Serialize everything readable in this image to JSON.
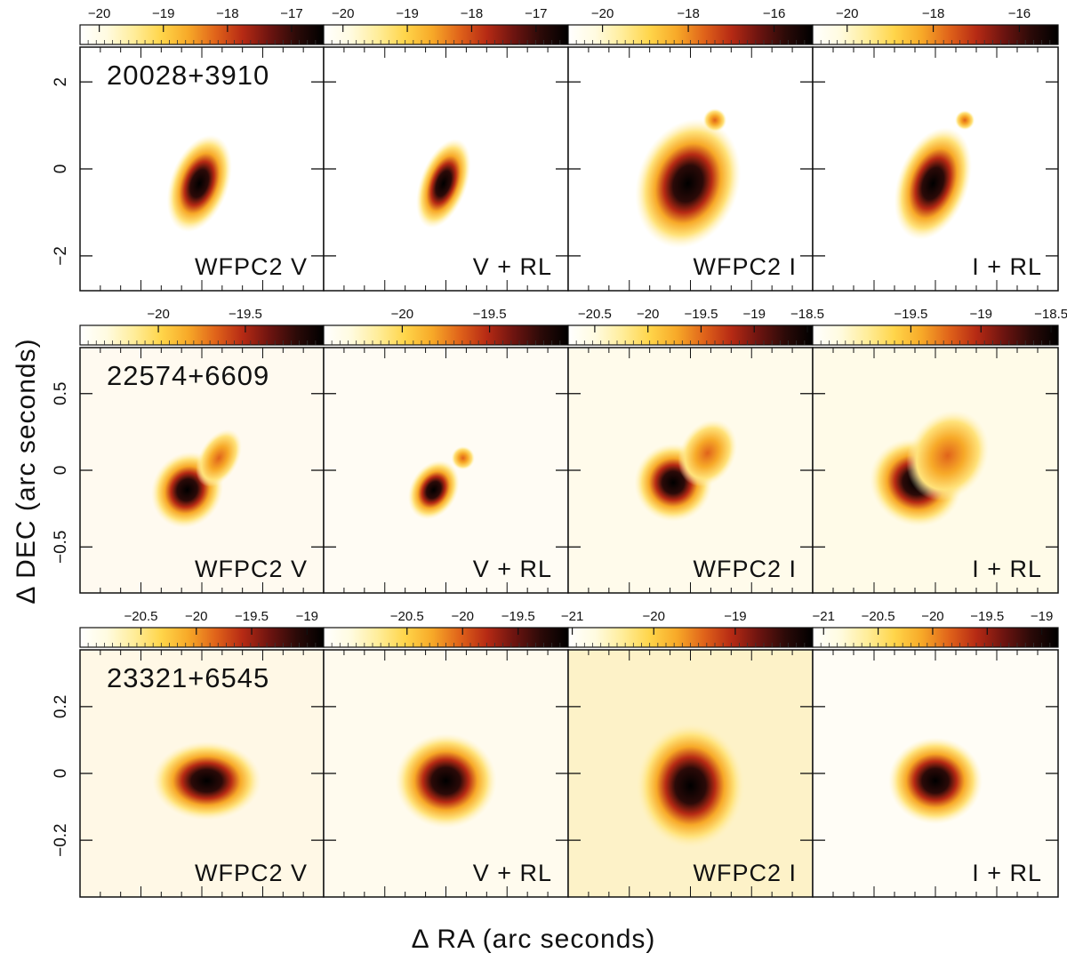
{
  "figure": {
    "x_axis_title": "Δ RA (arc seconds)",
    "y_axis_title": "Δ DEC (arc seconds)",
    "colormap": [
      "#ffffff",
      "#fffbe0",
      "#ffed9a",
      "#ffd54a",
      "#f7a928",
      "#e0631a",
      "#b62a14",
      "#6d1410",
      "#2b0a08",
      "#000000"
    ]
  },
  "rows": [
    {
      "object_label": "20028+3910",
      "y_ticks": [
        {
          "value": 2,
          "label": "2"
        },
        {
          "value": 0,
          "label": "0"
        },
        {
          "value": -2,
          "label": "−2"
        }
      ],
      "y_range": [
        -2.8,
        2.8
      ],
      "panels": [
        {
          "label": "WFPC2 V",
          "cbar_ticks": [
            {
              "value": -20,
              "label": "−20"
            },
            {
              "value": -19,
              "label": "−19"
            },
            {
              "value": -18,
              "label": "−18"
            },
            {
              "value": -17,
              "label": "−17"
            }
          ],
          "cbar_range": [
            -20.3,
            -16.5
          ]
        },
        {
          "label": "V + RL",
          "cbar_ticks": [
            {
              "value": -20,
              "label": "−20"
            },
            {
              "value": -19,
              "label": "−19"
            },
            {
              "value": -18,
              "label": "−18"
            },
            {
              "value": -17,
              "label": "−17"
            }
          ],
          "cbar_range": [
            -20.3,
            -16.5
          ]
        },
        {
          "label": "WFPC2 I",
          "cbar_ticks": [
            {
              "value": -20,
              "label": "−20"
            },
            {
              "value": -18,
              "label": "−18"
            },
            {
              "value": -16,
              "label": "−16"
            }
          ],
          "cbar_range": [
            -20.8,
            -15.1
          ]
        },
        {
          "label": "I + RL",
          "cbar_ticks": [
            {
              "value": -20,
              "label": "−20"
            },
            {
              "value": -18,
              "label": "−18"
            },
            {
              "value": -16,
              "label": "−16"
            }
          ],
          "cbar_range": [
            -20.8,
            -15.1
          ]
        }
      ]
    },
    {
      "object_label": "22574+6609",
      "y_ticks": [
        {
          "value": 0.5,
          "label": "0.5"
        },
        {
          "value": 0,
          "label": "0"
        },
        {
          "value": -0.5,
          "label": "−0.5"
        }
      ],
      "y_range": [
        -0.8,
        0.8
      ],
      "panels": [
        {
          "label": "WFPC2 V",
          "cbar_ticks": [
            {
              "value": -20,
              "label": "−20"
            },
            {
              "value": -19.5,
              "label": "−19.5"
            }
          ],
          "cbar_range": [
            -20.45,
            -19.05
          ]
        },
        {
          "label": "V + RL",
          "cbar_ticks": [
            {
              "value": -20,
              "label": "−20"
            },
            {
              "value": -19.5,
              "label": "−19.5"
            }
          ],
          "cbar_range": [
            -20.45,
            -19.05
          ]
        },
        {
          "label": "WFPC2 I",
          "cbar_ticks": [
            {
              "value": -20.5,
              "label": "−20.5"
            },
            {
              "value": -20,
              "label": "−20"
            },
            {
              "value": -19.5,
              "label": "−19.5"
            },
            {
              "value": -19,
              "label": "−19"
            },
            {
              "value": -18.5,
              "label": "−18.5"
            }
          ],
          "cbar_range": [
            -20.75,
            -18.45
          ]
        },
        {
          "label": "I + RL",
          "cbar_ticks": [
            {
              "value": -19.5,
              "label": "−19.5"
            },
            {
              "value": -19,
              "label": "−19"
            },
            {
              "value": -18.5,
              "label": "−18.5"
            }
          ],
          "cbar_range": [
            -20.2,
            -18.45
          ]
        }
      ]
    },
    {
      "object_label": "23321+6545",
      "y_ticks": [
        {
          "value": 0.2,
          "label": "0.2"
        },
        {
          "value": 0,
          "label": "0"
        },
        {
          "value": -0.2,
          "label": "−0.2"
        }
      ],
      "y_range": [
        -0.37,
        0.37
      ],
      "panels": [
        {
          "label": "WFPC2 V",
          "cbar_ticks": [
            {
              "value": -20.5,
              "label": "−20.5"
            },
            {
              "value": -20,
              "label": "−20"
            },
            {
              "value": -19.5,
              "label": "−19.5"
            },
            {
              "value": -19,
              "label": "−19"
            }
          ],
          "cbar_range": [
            -21.05,
            -18.85
          ]
        },
        {
          "label": "V + RL",
          "cbar_ticks": [
            {
              "value": -20.5,
              "label": "−20.5"
            },
            {
              "value": -20,
              "label": "−20"
            },
            {
              "value": -19.5,
              "label": "−19.5"
            }
          ],
          "cbar_range": [
            -21.25,
            -19.05
          ]
        },
        {
          "label": "WFPC2 I",
          "cbar_ticks": [
            {
              "value": -21,
              "label": "−21"
            },
            {
              "value": -20,
              "label": "−20"
            },
            {
              "value": -19,
              "label": "−19"
            }
          ],
          "cbar_range": [
            -21.05,
            -18.05
          ]
        },
        {
          "label": "I + RL",
          "cbar_ticks": [
            {
              "value": -21,
              "label": "−21"
            },
            {
              "value": -20.5,
              "label": "−20.5"
            },
            {
              "value": -20,
              "label": "−20"
            },
            {
              "value": -19.5,
              "label": "−19.5"
            },
            {
              "value": -19,
              "label": "−19"
            }
          ],
          "cbar_range": [
            -21.1,
            -18.85
          ]
        }
      ]
    }
  ]
}
